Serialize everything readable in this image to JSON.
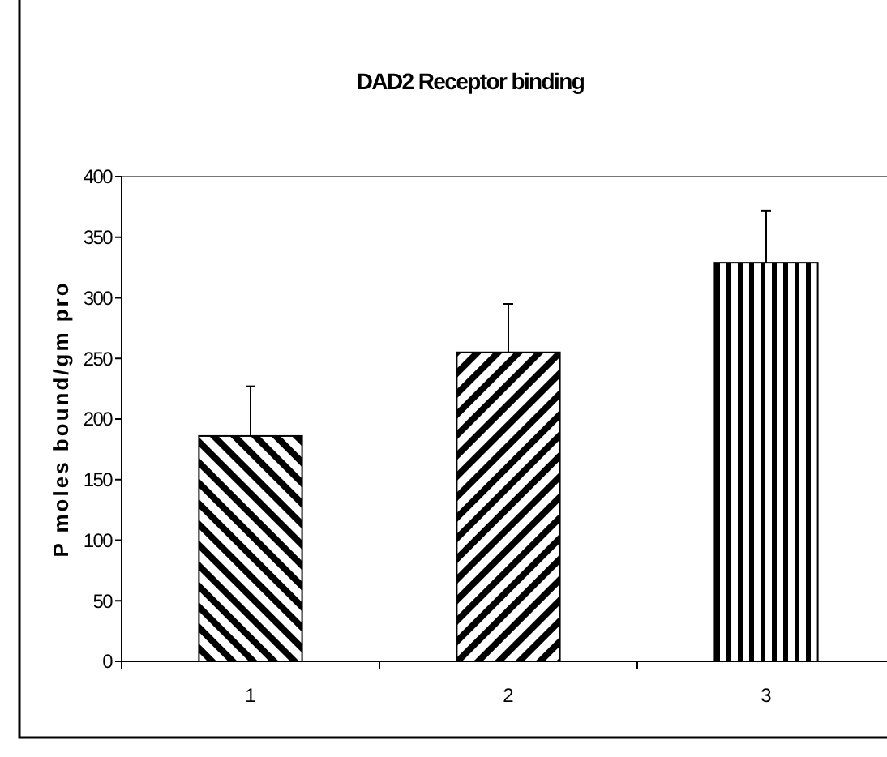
{
  "chart_data": {
    "type": "bar",
    "title": "DAD2 Receptor binding",
    "ylabel": "P moles bound/gm pro",
    "categories": [
      "1",
      "2",
      "3"
    ],
    "values": [
      186,
      255,
      329
    ],
    "errors": [
      41,
      40,
      43
    ],
    "color": "#000000",
    "ylim": [
      0,
      400
    ],
    "yticks": [
      0,
      50,
      100,
      150,
      200,
      250,
      300,
      350,
      400
    ]
  }
}
